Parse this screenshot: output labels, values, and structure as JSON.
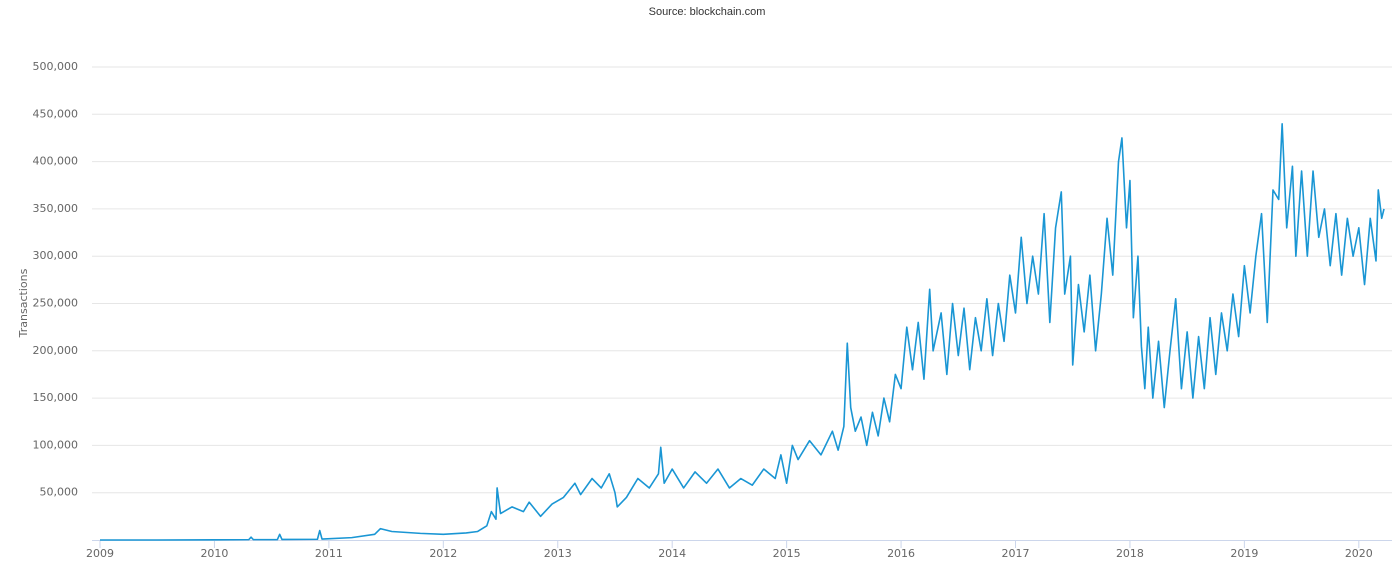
{
  "chart_data": {
    "type": "line",
    "title": "Source: blockchain.com",
    "y_label": "Transactions",
    "color": "#1a96d4",
    "grid": true,
    "xlim": [
      2008.93,
      2020.29
    ],
    "xticks": [
      2009,
      2010,
      2011,
      2012,
      2013,
      2014,
      2015,
      2016,
      2017,
      2018,
      2019,
      2020
    ],
    "ylim": [
      0,
      500000
    ],
    "yticks": [
      {
        "value": 50000,
        "label": "50,000"
      },
      {
        "value": 100000,
        "label": "100,000"
      },
      {
        "value": 150000,
        "label": "150,000"
      },
      {
        "value": 200000,
        "label": "200,000"
      },
      {
        "value": 250000,
        "label": "250,000"
      },
      {
        "value": 300000,
        "label": "300,000"
      },
      {
        "value": 350000,
        "label": "350,000"
      },
      {
        "value": 400000,
        "label": "400,000"
      },
      {
        "value": 450000,
        "label": "450,000"
      },
      {
        "value": 500000,
        "label": "500,000"
      }
    ],
    "x": [
      2009.0,
      2009.5,
      2010.0,
      2010.3,
      2010.32,
      2010.34,
      2010.55,
      2010.57,
      2010.59,
      2010.9,
      2010.92,
      2010.94,
      2011.2,
      2011.4,
      2011.45,
      2011.55,
      2011.8,
      2012.0,
      2012.2,
      2012.3,
      2012.38,
      2012.42,
      2012.46,
      2012.47,
      2012.5,
      2012.6,
      2012.7,
      2012.75,
      2012.85,
      2012.95,
      2013.05,
      2013.15,
      2013.2,
      2013.3,
      2013.38,
      2013.45,
      2013.5,
      2013.52,
      2013.6,
      2013.7,
      2013.8,
      2013.88,
      2013.9,
      2013.93,
      2014.0,
      2014.1,
      2014.2,
      2014.3,
      2014.4,
      2014.5,
      2014.6,
      2014.7,
      2014.8,
      2014.9,
      2014.95,
      2015.0,
      2015.05,
      2015.1,
      2015.2,
      2015.3,
      2015.4,
      2015.45,
      2015.5,
      2015.53,
      2015.56,
      2015.6,
      2015.65,
      2015.7,
      2015.75,
      2015.8,
      2015.85,
      2015.9,
      2015.95,
      2016.0,
      2016.05,
      2016.1,
      2016.15,
      2016.2,
      2016.25,
      2016.28,
      2016.35,
      2016.4,
      2016.45,
      2016.5,
      2016.55,
      2016.6,
      2016.65,
      2016.7,
      2016.75,
      2016.8,
      2016.85,
      2016.9,
      2016.95,
      2017.0,
      2017.05,
      2017.1,
      2017.15,
      2017.2,
      2017.25,
      2017.3,
      2017.35,
      2017.4,
      2017.43,
      2017.48,
      2017.5,
      2017.55,
      2017.6,
      2017.65,
      2017.7,
      2017.75,
      2017.8,
      2017.85,
      2017.9,
      2017.93,
      2017.97,
      2018.0,
      2018.03,
      2018.07,
      2018.1,
      2018.13,
      2018.16,
      2018.2,
      2018.25,
      2018.3,
      2018.35,
      2018.4,
      2018.45,
      2018.5,
      2018.55,
      2018.6,
      2018.65,
      2018.7,
      2018.75,
      2018.8,
      2018.85,
      2018.9,
      2018.95,
      2019.0,
      2019.05,
      2019.1,
      2019.15,
      2019.2,
      2019.25,
      2019.3,
      2019.33,
      2019.37,
      2019.42,
      2019.45,
      2019.5,
      2019.55,
      2019.6,
      2019.65,
      2019.7,
      2019.75,
      2019.8,
      2019.85,
      2019.9,
      2019.95,
      2020.0,
      2020.05,
      2020.1,
      2020.15,
      2020.17,
      2020.2,
      2020.22
    ],
    "values": [
      0,
      0,
      200,
      400,
      3000,
      400,
      500,
      6000,
      600,
      800,
      10000,
      1000,
      2500,
      6000,
      12000,
      9000,
      7000,
      6000,
      7500,
      9000,
      15000,
      30000,
      22000,
      55000,
      28000,
      35000,
      30000,
      40000,
      25000,
      38000,
      45000,
      60000,
      48000,
      65000,
      55000,
      70000,
      50000,
      35000,
      45000,
      65000,
      55000,
      70000,
      98000,
      60000,
      75000,
      55000,
      72000,
      60000,
      75000,
      55000,
      65000,
      58000,
      75000,
      65000,
      90000,
      60000,
      100000,
      85000,
      105000,
      90000,
      115000,
      95000,
      120000,
      208000,
      140000,
      115000,
      130000,
      100000,
      135000,
      110000,
      150000,
      125000,
      175000,
      160000,
      225000,
      180000,
      230000,
      170000,
      265000,
      200000,
      240000,
      175000,
      250000,
      195000,
      245000,
      180000,
      235000,
      200000,
      255000,
      195000,
      250000,
      210000,
      280000,
      240000,
      320000,
      250000,
      300000,
      260000,
      345000,
      230000,
      330000,
      368000,
      260000,
      300000,
      185000,
      270000,
      220000,
      280000,
      200000,
      260000,
      340000,
      280000,
      400000,
      425000,
      330000,
      380000,
      235000,
      300000,
      205000,
      160000,
      225000,
      150000,
      210000,
      140000,
      200000,
      255000,
      160000,
      220000,
      150000,
      215000,
      160000,
      235000,
      175000,
      240000,
      200000,
      260000,
      215000,
      290000,
      240000,
      300000,
      345000,
      230000,
      370000,
      360000,
      440000,
      330000,
      395000,
      300000,
      390000,
      300000,
      390000,
      320000,
      350000,
      290000,
      345000,
      280000,
      340000,
      300000,
      330000,
      270000,
      340000,
      295000,
      370000,
      340000,
      350000
    ]
  }
}
